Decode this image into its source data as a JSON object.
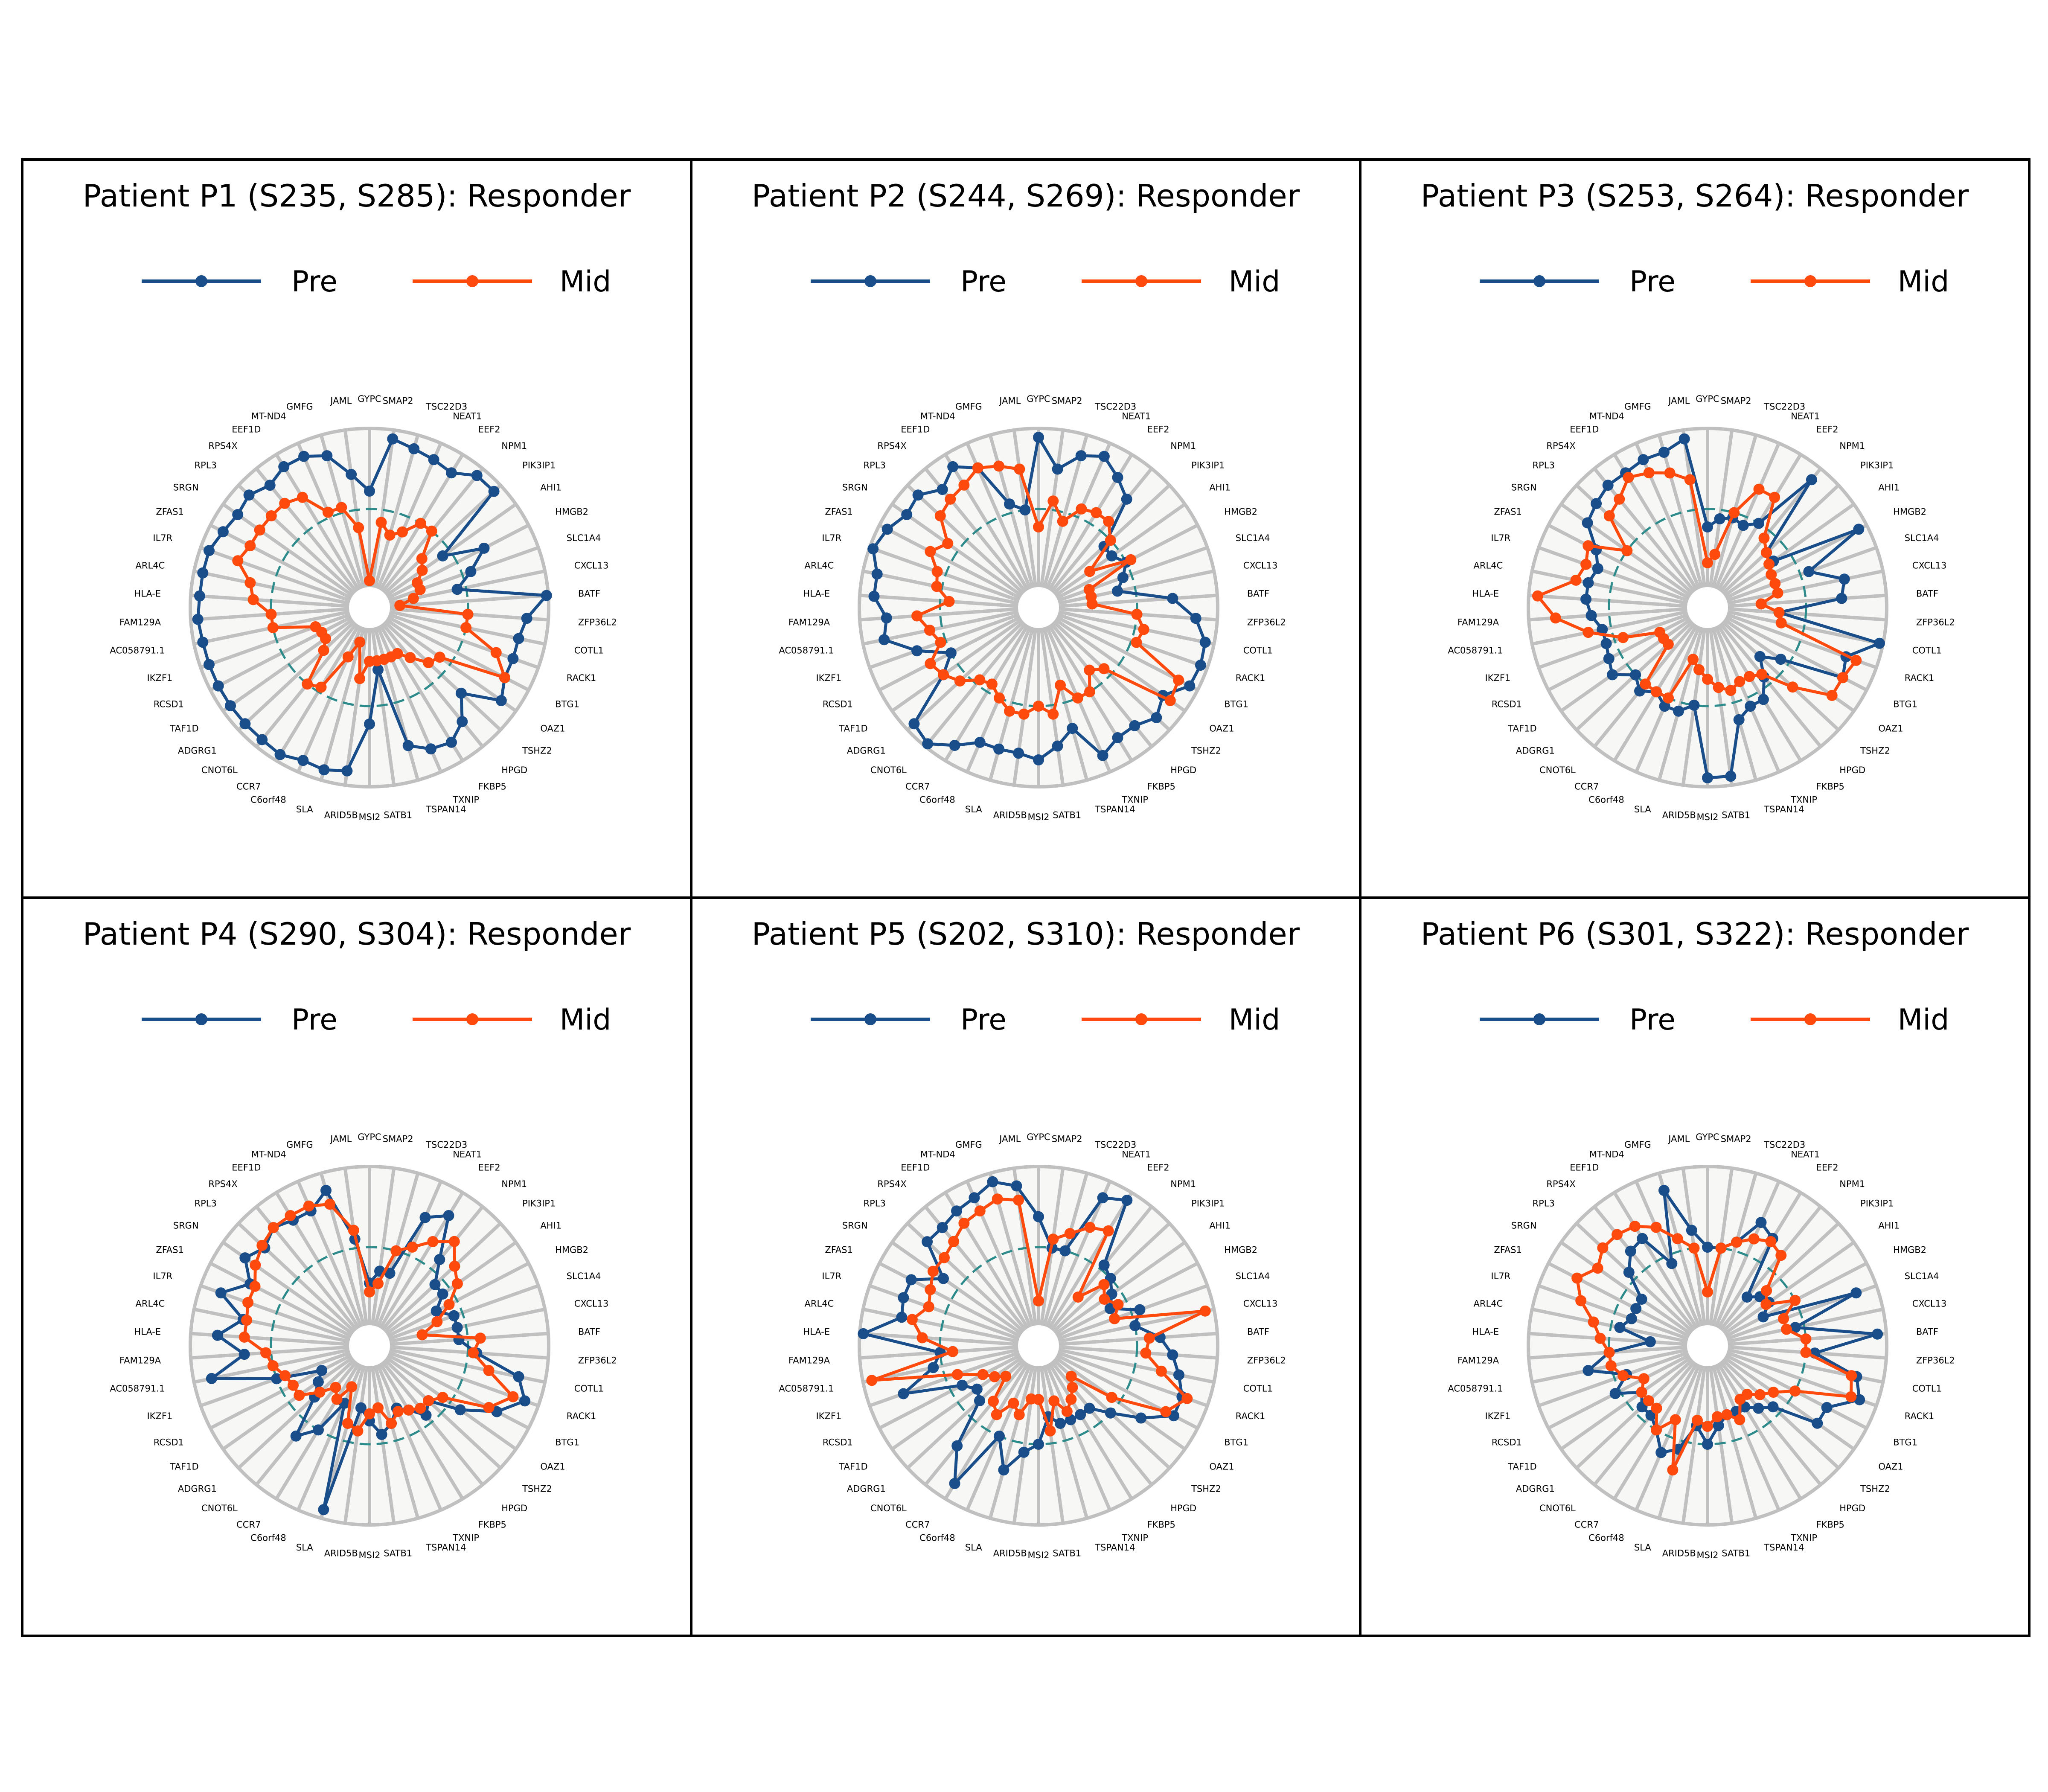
{
  "figure": {
    "colors": {
      "pre": "#1a4e8a",
      "mid": "#ff4a0e",
      "ring": "#2e8b8b",
      "spoke": "#c0c0c0",
      "disk": "#f7f7f5",
      "border": "#000000"
    }
  },
  "chart_data": [
    {
      "type": "radar",
      "title": "Patient P1 (S235, S285): Responder",
      "legend": [
        "Pre",
        "Mid"
      ],
      "legend_position": "top",
      "categories": [
        "GYPC",
        "SMAP2",
        "TSC22D3",
        "NEAT1",
        "EEF2",
        "NPM1",
        "PIK3IP1",
        "AHI1",
        "HMGB2",
        "SLC1A4",
        "CXCL13",
        "BATF",
        "ZFP36L2",
        "COTL1",
        "RACK1",
        "BTG1",
        "OAZ1",
        "TSHZ2",
        "HPGD",
        "FKBP5",
        "TXNIP",
        "TSPAN14",
        "SATB1",
        "MSI2",
        "ARID5B",
        "SLA",
        "C6orf48",
        "CCR7",
        "CNOT6L",
        "ADGRG1",
        "TAF1D",
        "RCSD1",
        "IKZF1",
        "AC058791.1",
        "FAM129A",
        "HLA-E",
        "ARL4C",
        "IL7R",
        "ZFAS1",
        "SRGN",
        "RPL3",
        "RPS4X",
        "EEF1D",
        "MT-ND4",
        "GMFG",
        "JAML"
      ],
      "rlim": [
        0,
        1
      ],
      "reference_circle": 0.55,
      "series": [
        {
          "name": "Pre",
          "values": [
            0.65,
            0.95,
            0.92,
            0.9,
            0.88,
            0.95,
            0.95,
            0.5,
            0.72,
            0.6,
            0.5,
            0.99,
            0.88,
            0.85,
            0.85,
            0.85,
            0.9,
            0.7,
            0.82,
            0.88,
            0.86,
            0.8,
            0.35,
            0.65,
            0.92,
            0.94,
            0.93,
            0.96,
            0.95,
            0.95,
            0.95,
            0.95,
            0.95,
            0.95,
            0.96,
            0.95,
            0.95,
            0.95,
            0.92,
            0.9,
            0.92,
            0.88,
            0.92,
            0.92,
            0.88,
            0.75
          ]
        },
        {
          "name": "Mid",
          "values": [
            0.15,
            0.48,
            0.42,
            0.46,
            0.55,
            0.55,
            0.4,
            0.36,
            0.3,
            0.3,
            0.25,
            0.17,
            0.55,
            0.55,
            0.75,
            0.85,
            0.48,
            0.45,
            0.36,
            0.3,
            0.3,
            0.3,
            0.3,
            0.3,
            0.4,
            0.2,
            0.3,
            0.52,
            0.55,
            0.35,
            0.3,
            0.3,
            0.32,
            0.55,
            0.55,
            0.65,
            0.68,
            0.78,
            0.75,
            0.75,
            0.75,
            0.75,
            0.72,
            0.58,
            0.58,
            0.45
          ]
        }
      ]
    },
    {
      "type": "radar",
      "title": "Patient P2 (S244, S269): Responder",
      "legend": [
        "Pre",
        "Mid"
      ],
      "legend_position": "top",
      "categories": [
        "GYPC",
        "SMAP2",
        "TSC22D3",
        "NEAT1",
        "EEF2",
        "NPM1",
        "PIK3IP1",
        "AHI1",
        "HMGB2",
        "SLC1A4",
        "CXCL13",
        "BATF",
        "ZFP36L2",
        "COTL1",
        "RACK1",
        "BTG1",
        "OAZ1",
        "TSHZ2",
        "HPGD",
        "FKBP5",
        "TXNIP",
        "TSPAN14",
        "SATB1",
        "MSI2",
        "ARID5B",
        "SLA",
        "C6orf48",
        "CCR7",
        "CNOT6L",
        "ADGRG1",
        "TAF1D",
        "RCSD1",
        "IKZF1",
        "AC058791.1",
        "FAM129A",
        "HLA-E",
        "ARL4C",
        "IL7R",
        "ZFAS1",
        "SRGN",
        "RPL3",
        "RPS4X",
        "EEF1D",
        "MT-ND4",
        "GMFG",
        "JAML"
      ],
      "rlim": [
        0,
        1
      ],
      "reference_circle": 0.55,
      "series": [
        {
          "name": "Pre",
          "values": [
            0.95,
            0.78,
            0.88,
            0.92,
            0.85,
            0.78,
            0.5,
            0.5,
            0.55,
            0.5,
            0.45,
            0.75,
            0.88,
            0.95,
            0.96,
            0.95,
            0.85,
            0.9,
            0.85,
            0.85,
            0.9,
            0.7,
            0.78,
            0.85,
            0.82,
            0.82,
            0.82,
            0.9,
            0.98,
            0.95,
            0.65,
            0.55,
            0.72,
            0.88,
            0.85,
            0.92,
            0.92,
            0.98,
            0.95,
            0.9,
            0.92,
            0.85,
            0.92,
            0.85,
            0.6,
            0.55
          ]
        },
        {
          "name": "Mid",
          "values": [
            0.45,
            0.6,
            0.5,
            0.6,
            0.62,
            0.62,
            0.55,
            0.35,
            0.58,
            0.3,
            0.3,
            0.3,
            0.55,
            0.6,
            0.58,
            0.88,
            0.9,
            0.5,
            0.45,
            0.55,
            0.55,
            0.45,
            0.6,
            0.55,
            0.6,
            0.6,
            0.55,
            0.5,
            0.52,
            0.6,
            0.65,
            0.68,
            0.58,
            0.62,
            0.68,
            0.5,
            0.58,
            0.6,
            0.68,
            0.62,
            0.75,
            0.78,
            0.8,
            0.85,
            0.82,
            0.78
          ]
        }
      ]
    },
    {
      "type": "radar",
      "title": "Patient P3 (S253, S264): Responder",
      "legend": [
        "Pre",
        "Mid"
      ],
      "legend_position": "top",
      "categories": [
        "GYPC",
        "SMAP2",
        "TSC22D3",
        "NEAT1",
        "EEF2",
        "NPM1",
        "PIK3IP1",
        "AHI1",
        "HMGB2",
        "SLC1A4",
        "CXCL13",
        "BATF",
        "ZFP36L2",
        "COTL1",
        "RACK1",
        "BTG1",
        "OAZ1",
        "TSHZ2",
        "HPGD",
        "FKBP5",
        "TXNIP",
        "TSPAN14",
        "SATB1",
        "MSI2",
        "ARID5B",
        "SLA",
        "C6orf48",
        "CCR7",
        "CNOT6L",
        "ADGRG1",
        "TAF1D",
        "RCSD1",
        "IKZF1",
        "AC058791.1",
        "FAM129A",
        "HLA-E",
        "ARL4C",
        "IL7R",
        "ZFAS1",
        "SRGN",
        "RPL3",
        "RPS4X",
        "EEF1D",
        "MT-ND4",
        "GMFG",
        "JAML"
      ],
      "rlim": [
        0,
        1
      ],
      "reference_circle": 0.55,
      "series": [
        {
          "name": "Pre",
          "values": [
            0.45,
            0.5,
            0.52,
            0.5,
            0.55,
            0.92,
            0.45,
            0.45,
            0.95,
            0.6,
            0.78,
            0.75,
            0.4,
            0.98,
            0.82,
            0.85,
            0.5,
            0.4,
            0.5,
            0.6,
            0.6,
            0.65,
            0.95,
            0.95,
            0.55,
            0.6,
            0.6,
            0.55,
            0.6,
            0.55,
            0.65,
            0.62,
            0.6,
            0.6,
            0.65,
            0.68,
            0.68,
            0.65,
            0.7,
            0.82,
            0.85,
            0.88,
            0.88,
            0.9,
            0.9,
            0.95
          ]
        },
        {
          "name": "Mid",
          "values": [
            0.25,
            0.3,
            0.55,
            0.72,
            0.72,
            0.5,
            0.45,
            0.42,
            0.4,
            0.4,
            0.4,
            0.3,
            0.4,
            0.42,
            0.88,
            0.85,
            0.85,
            0.65,
            0.48,
            0.45,
            0.45,
            0.48,
            0.45,
            0.4,
            0.35,
            0.3,
            0.55,
            0.55,
            0.55,
            0.3,
            0.3,
            0.3,
            0.5,
            0.68,
            0.85,
            0.95,
            0.75,
            0.72,
            0.75,
            0.55,
            0.75,
            0.78,
            0.85,
            0.82,
            0.78,
            0.72
          ]
        }
      ]
    },
    {
      "type": "radar",
      "title": "Patient P4 (S290, S304): Responder",
      "legend": [
        "Pre",
        "Mid"
      ],
      "legend_position": "top",
      "categories": [
        "GYPC",
        "SMAP2",
        "TSC22D3",
        "NEAT1",
        "EEF2",
        "NPM1",
        "PIK3IP1",
        "AHI1",
        "HMGB2",
        "SLC1A4",
        "CXCL13",
        "BATF",
        "ZFP36L2",
        "COTL1",
        "RACK1",
        "BTG1",
        "OAZ1",
        "TSHZ2",
        "HPGD",
        "FKBP5",
        "TXNIP",
        "TSPAN14",
        "SATB1",
        "MSI2",
        "ARID5B",
        "SLA",
        "C6orf48",
        "CCR7",
        "CNOT6L",
        "ADGRG1",
        "TAF1D",
        "RCSD1",
        "IKZF1",
        "AC058791.1",
        "FAM129A",
        "HLA-E",
        "ARL4C",
        "IL7R",
        "ZFAS1",
        "SRGN",
        "RPL3",
        "RPS4X",
        "EEF1D",
        "MT-ND4",
        "GMFG",
        "JAML"
      ],
      "rlim": [
        0,
        1
      ],
      "reference_circle": 0.55,
      "series": [
        {
          "name": "Pre",
          "values": [
            0.35,
            0.42,
            0.42,
            0.78,
            0.85,
            0.62,
            0.5,
            0.5,
            0.42,
            0.5,
            0.5,
            0.5,
            0.6,
            0.85,
            0.92,
            0.8,
            0.62,
            0.45,
            0.5,
            0.42,
            0.38,
            0.45,
            0.5,
            0.42,
            0.35,
            0.95,
            0.35,
            0.55,
            0.65,
            0.42,
            0.35,
            0.3,
            0.55,
            0.9,
            0.7,
            0.85,
            0.72,
            0.88,
            0.75,
            0.85,
            0.8,
            0.85,
            0.82,
            0.82,
            0.9,
            0.6
          ]
        },
        {
          "name": "Mid",
          "values": [
            0.3,
            0.35,
            0.55,
            0.6,
            0.68,
            0.75,
            0.65,
            0.6,
            0.5,
            0.4,
            0.3,
            0.62,
            0.58,
            0.68,
            0.85,
            0.75,
            0.5,
            0.45,
            0.45,
            0.42,
            0.4,
            0.45,
            0.35,
            0.38,
            0.48,
            0.45,
            0.25,
            0.35,
            0.3,
            0.38,
            0.48,
            0.48,
            0.5,
            0.55,
            0.58,
            0.7,
            0.7,
            0.72,
            0.72,
            0.78,
            0.82,
            0.85,
            0.85,
            0.85,
            0.82,
            0.65
          ]
        }
      ]
    },
    {
      "type": "radar",
      "title": "Patient P5 (S202, S310): Responder",
      "legend": [
        "Pre",
        "Mid"
      ],
      "legend_position": "top",
      "categories": [
        "GYPC",
        "SMAP2",
        "TSC22D3",
        "NEAT1",
        "EEF2",
        "NPM1",
        "PIK3IP1",
        "AHI1",
        "HMGB2",
        "SLC1A4",
        "CXCL13",
        "BATF",
        "ZFP36L2",
        "COTL1",
        "RACK1",
        "BTG1",
        "OAZ1",
        "TSHZ2",
        "HPGD",
        "FKBP5",
        "TXNIP",
        "TSPAN14",
        "SATB1",
        "MSI2",
        "ARID5B",
        "SLA",
        "C6orf48",
        "CCR7",
        "CNOT6L",
        "ADGRG1",
        "TAF1D",
        "RCSD1",
        "IKZF1",
        "AC058791.1",
        "FAM129A",
        "HLA-E",
        "ARL4C",
        "IL7R",
        "ZFAS1",
        "SRGN",
        "RPL3",
        "RPS4X",
        "EEF1D",
        "MT-ND4",
        "GMFG",
        "JAML"
      ],
      "rlim": [
        0,
        1
      ],
      "reference_circle": 0.55,
      "series": [
        {
          "name": "Pre",
          "values": [
            0.72,
            0.55,
            0.55,
            0.9,
            0.95,
            0.58,
            0.55,
            0.5,
            0.45,
            0.6,
            0.55,
            0.68,
            0.75,
            0.8,
            0.85,
            0.85,
            0.7,
            0.55,
            0.45,
            0.45,
            0.45,
            0.45,
            0.4,
            0.55,
            0.6,
            0.72,
            0.55,
            0.9,
            0.72,
            0.45,
            0.42,
            0.48,
            0.8,
            0.6,
            0.55,
            0.98,
            0.78,
            0.8,
            0.8,
            0.65,
            0.85,
            0.85,
            0.88,
            0.9,
            0.95,
            0.9
          ]
        },
        {
          "name": "Mid",
          "values": [
            0.25,
            0.6,
            0.65,
            0.72,
            0.75,
            0.35,
            0.5,
            0.45,
            0.5,
            0.45,
            0.95,
            0.62,
            0.6,
            0.7,
            0.88,
            0.8,
            0.5,
            0.25,
            0.3,
            0.35,
            0.4,
            0.32,
            0.48,
            0.3,
            0.3,
            0.4,
            0.35,
            0.45,
            0.4,
            0.25,
            0.3,
            0.35,
            0.48,
            0.95,
            0.48,
            0.65,
            0.72,
            0.65,
            0.68,
            0.72,
            0.72,
            0.75,
            0.8,
            0.82,
            0.85,
            0.82
          ]
        }
      ]
    },
    {
      "type": "radar",
      "title": "Patient P6 (S301, S322): Responder",
      "legend": [
        "Pre",
        "Mid"
      ],
      "legend_position": "top",
      "categories": [
        "GYPC",
        "SMAP2",
        "TSC22D3",
        "NEAT1",
        "EEF2",
        "NPM1",
        "PIK3IP1",
        "AHI1",
        "HMGB2",
        "SLC1A4",
        "CXCL13",
        "BATF",
        "ZFP36L2",
        "COTL1",
        "RACK1",
        "BTG1",
        "OAZ1",
        "TSHZ2",
        "HPGD",
        "FKBP5",
        "TXNIP",
        "TSPAN14",
        "SATB1",
        "MSI2",
        "ARID5B",
        "SLA",
        "C6orf48",
        "CCR7",
        "CNOT6L",
        "ADGRG1",
        "TAF1D",
        "RCSD1",
        "IKZF1",
        "AC058791.1",
        "FAM129A",
        "HLA-E",
        "ARL4C",
        "IL7R",
        "ZFAS1",
        "SRGN",
        "RPL3",
        "RPS4X",
        "EEF1D",
        "MT-ND4",
        "GMFG",
        "JAML"
      ],
      "rlim": [
        0,
        1
      ],
      "reference_circle": 0.55,
      "series": [
        {
          "name": "Pre",
          "values": [
            0.55,
            0.55,
            0.6,
            0.75,
            0.7,
            0.35,
            0.4,
            0.42,
            0.35,
            0.88,
            0.5,
            0.95,
            0.6,
            0.85,
            0.9,
            0.75,
            0.75,
            0.5,
            0.45,
            0.4,
            0.4,
            0.4,
            0.45,
            0.55,
            0.45,
            0.6,
            0.65,
            0.55,
            0.5,
            0.5,
            0.45,
            0.58,
            0.48,
            0.68,
            0.55,
            0.32,
            0.5,
            0.45,
            0.45,
            0.45,
            0.6,
            0.68,
            0.7,
            0.5,
            0.9,
            0.65
          ]
        },
        {
          "name": "Mid",
          "values": [
            0.3,
            0.55,
            0.6,
            0.65,
            0.68,
            0.65,
            0.45,
            0.4,
            0.55,
            0.45,
            0.45,
            0.55,
            0.55,
            0.82,
            0.85,
            0.55,
            0.45,
            0.4,
            0.35,
            0.35,
            0.45,
            0.4,
            0.4,
            0.45,
            0.42,
            0.72,
            0.45,
            0.55,
            0.45,
            0.45,
            0.45,
            0.4,
            0.5,
            0.55,
            0.55,
            0.6,
            0.65,
            0.75,
            0.82,
            0.75,
            0.8,
            0.8,
            0.78,
            0.72,
            0.62,
            0.55
          ]
        }
      ]
    }
  ]
}
